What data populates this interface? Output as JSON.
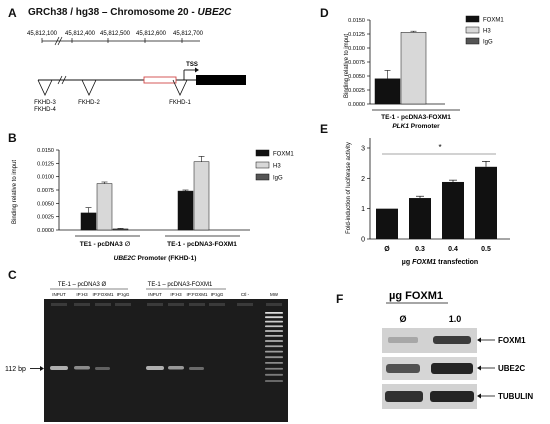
{
  "panelA": {
    "label": "A",
    "title_prefix": "GRCh38 / hg38 – Chromosome 20 - ",
    "title_gene": "UBE2C",
    "ticks": [
      "45,812,100",
      "45,812,400",
      "45,812,500",
      "45,812,600",
      "45,812,700"
    ],
    "tss": "TSS",
    "fkhd": [
      "FKHD-3",
      "FKHD-4",
      "FKHD-2",
      "FKHD-1"
    ]
  },
  "panelB": {
    "label": "B",
    "ylabel": "Binding relative to imput",
    "yticks": [
      "0.0150",
      "0.0125",
      "0.0100",
      "0.0075",
      "0.0050",
      "0.0025",
      "0.0000"
    ],
    "groups": [
      "TE1 - pcDNA3",
      "TE-1 - pcDNA3-FOXM1"
    ],
    "group1_symbol": "∅",
    "xlabel_gene": "UBE2C",
    "xlabel_rest": " Promoter (FKHD-1)",
    "legend": [
      "FOXM1",
      "H3",
      "IgG"
    ]
  },
  "panelC": {
    "label": "C",
    "group1": "TE-1 – pcDNA3 Ø",
    "group2": "TE-1 – pcDNA3-FOXM1",
    "lanes": [
      "INPUT",
      "IP:H3",
      "IP:FOXM1",
      "IP:IgG",
      "INPUT",
      "IP:H3",
      "IP:FOXM1",
      "IP:IgG",
      "Ctl -",
      "MW"
    ],
    "bp_label": "112 bp"
  },
  "panelD": {
    "label": "D",
    "ylabel": "Binding relative to imput",
    "yticks": [
      "0.0150",
      "0.0125",
      "0.0100",
      "0.0075",
      "0.0050",
      "0.0025",
      "0.0000"
    ],
    "group": "TE-1 - pcDNA3-FOXM1",
    "xlabel_gene": "PLK1",
    "xlabel_rest": " Promoter",
    "legend": [
      "FOXM1",
      "H3",
      "IgG"
    ]
  },
  "panelE": {
    "label": "E",
    "ylabel": "Fold-induction of luciferase activity",
    "yticks": [
      "3",
      "2",
      "1",
      "0"
    ],
    "star": "*",
    "xlabel_prefix": "µg ",
    "xlabel_gene": "FOXM1",
    "xlabel_rest": " transfection"
  },
  "panelF": {
    "label": "F",
    "title": "µg FOXM1",
    "cols": [
      "Ø",
      "1.0"
    ],
    "rows": [
      "FOXM1",
      "UBE2C",
      "TUBULIN"
    ]
  },
  "chart_data": [
    {
      "type": "bar",
      "panel": "B",
      "categories": [
        "TE1 - pcDNA3 ∅",
        "TE-1 - pcDNA3-FOXM1"
      ],
      "series": [
        {
          "name": "FOXM1",
          "values": [
            0.0032,
            0.0073
          ],
          "errors": [
            0.001,
            0.0002
          ]
        },
        {
          "name": "H3",
          "values": [
            0.0087,
            0.0128
          ],
          "errors": [
            0.0003,
            0.001
          ]
        },
        {
          "name": "IgG",
          "values": [
            0.0002,
            0.0
          ],
          "errors": [
            0.0001,
            0.0
          ]
        }
      ],
      "ylim": [
        0,
        0.015
      ],
      "colors": [
        "#111111",
        "#d8d8d8",
        "#555555"
      ]
    },
    {
      "type": "bar",
      "panel": "D",
      "categories": [
        "TE-1 - pcDNA3-FOXM1"
      ],
      "series": [
        {
          "name": "FOXM1",
          "values": [
            0.0045
          ],
          "errors": [
            0.0015
          ]
        },
        {
          "name": "H3",
          "values": [
            0.0128
          ],
          "errors": [
            0.0002
          ]
        },
        {
          "name": "IgG",
          "values": [
            0.0
          ],
          "errors": [
            0.0
          ]
        }
      ],
      "ylim": [
        0,
        0.015
      ],
      "colors": [
        "#111111",
        "#d8d8d8",
        "#555555"
      ]
    },
    {
      "type": "bar",
      "panel": "E",
      "categories": [
        "Ø",
        "0.3",
        "0.4",
        "0.5"
      ],
      "values": [
        1.0,
        1.35,
        1.88,
        2.38
      ],
      "errors": [
        0.0,
        0.06,
        0.06,
        0.18
      ],
      "ylim": [
        0,
        3
      ]
    }
  ]
}
